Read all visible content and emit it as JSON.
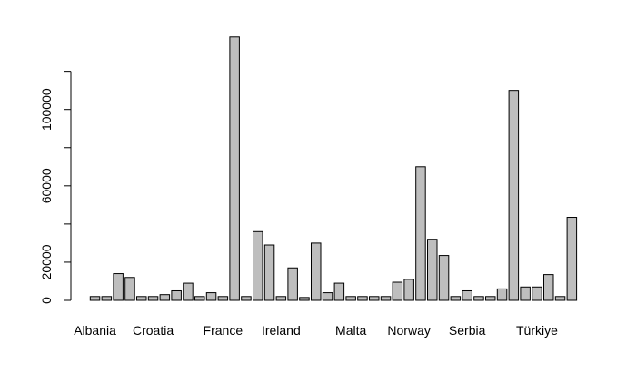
{
  "chart_data": {
    "type": "bar",
    "title": "",
    "xlabel": "",
    "ylabel": "",
    "ylim": [
      0,
      140000
    ],
    "yticks": [
      0,
      20000,
      60000,
      100000
    ],
    "ytick_labels": [
      "0",
      "20000",
      "60000",
      "100000"
    ],
    "categories": [
      "Albania",
      "",
      "",
      "",
      "",
      "Croatia",
      "",
      "",
      "",
      "",
      "",
      "France",
      "",
      "",
      "",
      "",
      "Ireland",
      "",
      "",
      "",
      "",
      "",
      "Malta",
      "",
      "",
      "",
      "",
      "Norway",
      "",
      "",
      "",
      "",
      "Serbia",
      "",
      "",
      "",
      "",
      "",
      "Türkiye",
      "",
      "",
      ""
    ],
    "values": [
      2000,
      2000,
      14000,
      12000,
      2000,
      2000,
      3000,
      5000,
      9000,
      2000,
      4000,
      2000,
      138000,
      2000,
      36000,
      29000,
      2000,
      17000,
      1500,
      30000,
      4000,
      9000,
      2000,
      2000,
      2000,
      2000,
      9500,
      11000,
      70000,
      32000,
      23500,
      2000,
      5000,
      2000,
      2000,
      6000,
      110000,
      7000,
      7000,
      13500,
      2000,
      43500
    ],
    "bar_color": "#bebebe",
    "grid": false,
    "legend": "none"
  }
}
